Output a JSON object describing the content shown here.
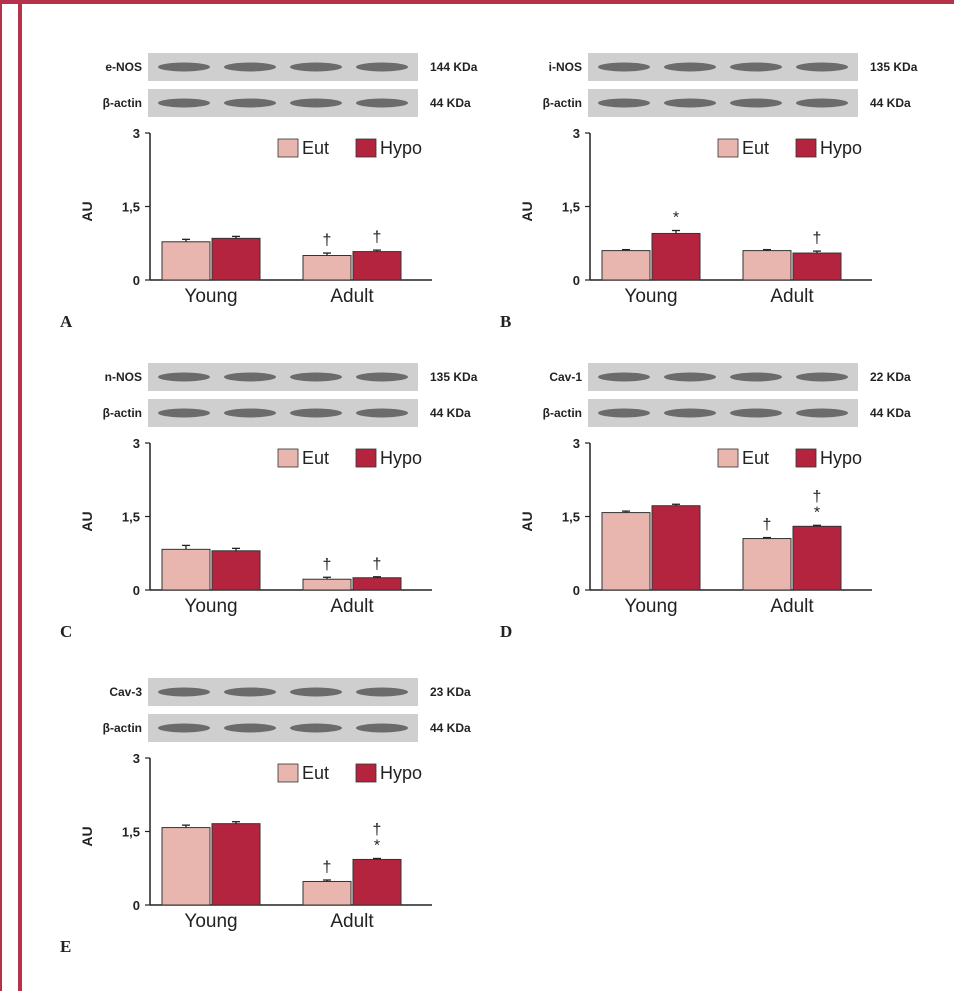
{
  "colors": {
    "eut": "#e8b6ae",
    "hypo": "#b5243f",
    "frame": "#b5324a",
    "blot_bg": "#cfcfcf",
    "band": "#4a4a4a"
  },
  "chart_data": [
    {
      "type": "bar",
      "panel_letter": "A",
      "blots": [
        {
          "label": "e-NOS",
          "kda": "144 KDa"
        },
        {
          "label": "β-actin",
          "kda": "44 KDa"
        }
      ],
      "categories": [
        "Young",
        "Adult"
      ],
      "series": [
        {
          "name": "Eut",
          "values": [
            0.78,
            0.5
          ],
          "errors": [
            0.05,
            0.05
          ]
        },
        {
          "name": "Hypo",
          "values": [
            0.85,
            0.58
          ],
          "errors": [
            0.04,
            0.03
          ]
        }
      ],
      "ylabel": "AU",
      "ylim": [
        0,
        3
      ],
      "yticks": [
        "0",
        "1,5",
        "3"
      ],
      "ytick_values": [
        0,
        1.5,
        3
      ],
      "annotations": [
        {
          "series": "Eut",
          "category": "Adult",
          "text": [
            "†"
          ]
        },
        {
          "series": "Hypo",
          "category": "Adult",
          "text": [
            "†"
          ]
        }
      ]
    },
    {
      "type": "bar",
      "panel_letter": "B",
      "blots": [
        {
          "label": "i-NOS",
          "kda": "135 KDa"
        },
        {
          "label": "β-actin",
          "kda": "44 KDa"
        }
      ],
      "categories": [
        "Young",
        "Adult"
      ],
      "series": [
        {
          "name": "Eut",
          "values": [
            0.6,
            0.6
          ],
          "errors": [
            0.02,
            0.02
          ]
        },
        {
          "name": "Hypo",
          "values": [
            0.95,
            0.55
          ],
          "errors": [
            0.06,
            0.04
          ]
        }
      ],
      "ylabel": "AU",
      "ylim": [
        0,
        3
      ],
      "yticks": [
        "0",
        "1,5",
        "3"
      ],
      "ytick_values": [
        0,
        1.5,
        3
      ],
      "annotations": [
        {
          "series": "Hypo",
          "category": "Young",
          "text": [
            "*"
          ]
        },
        {
          "series": "Hypo",
          "category": "Adult",
          "text": [
            "†"
          ]
        }
      ]
    },
    {
      "type": "bar",
      "panel_letter": "C",
      "blots": [
        {
          "label": "n-NOS",
          "kda": "135 KDa"
        },
        {
          "label": "β-actin",
          "kda": "44 KDa"
        }
      ],
      "categories": [
        "Young",
        "Adult"
      ],
      "series": [
        {
          "name": "Eut",
          "values": [
            0.83,
            0.22
          ],
          "errors": [
            0.08,
            0.04
          ]
        },
        {
          "name": "Hypo",
          "values": [
            0.8,
            0.25
          ],
          "errors": [
            0.05,
            0.02
          ]
        }
      ],
      "ylabel": "AU",
      "ylim": [
        0,
        3
      ],
      "yticks": [
        "0",
        "1,5",
        "3"
      ],
      "ytick_values": [
        0,
        1.5,
        3
      ],
      "annotations": [
        {
          "series": "Eut",
          "category": "Adult",
          "text": [
            "†"
          ]
        },
        {
          "series": "Hypo",
          "category": "Adult",
          "text": [
            "†"
          ]
        }
      ]
    },
    {
      "type": "bar",
      "panel_letter": "D",
      "blots": [
        {
          "label": "Cav-1",
          "kda": "22 KDa"
        },
        {
          "label": "β-actin",
          "kda": "44 KDa"
        }
      ],
      "categories": [
        "Young",
        "Adult"
      ],
      "series": [
        {
          "name": "Eut",
          "values": [
            1.58,
            1.05
          ],
          "errors": [
            0.03,
            0.02
          ]
        },
        {
          "name": "Hypo",
          "values": [
            1.72,
            1.3
          ],
          "errors": [
            0.03,
            0.02
          ]
        }
      ],
      "ylabel": "AU",
      "ylim": [
        0,
        3
      ],
      "yticks": [
        "0",
        "1,5",
        "3"
      ],
      "ytick_values": [
        0,
        1.5,
        3
      ],
      "annotations": [
        {
          "series": "Eut",
          "category": "Adult",
          "text": [
            "†"
          ]
        },
        {
          "series": "Hypo",
          "category": "Adult",
          "text": [
            "†",
            "*"
          ]
        }
      ]
    },
    {
      "type": "bar",
      "panel_letter": "E",
      "blots": [
        {
          "label": "Cav-3",
          "kda": "23 KDa"
        },
        {
          "label": "β-actin",
          "kda": "44 KDa"
        }
      ],
      "categories": [
        "Young",
        "Adult"
      ],
      "series": [
        {
          "name": "Eut",
          "values": [
            1.58,
            0.48
          ],
          "errors": [
            0.05,
            0.03
          ]
        },
        {
          "name": "Hypo",
          "values": [
            1.66,
            0.93
          ],
          "errors": [
            0.04,
            0.02
          ]
        }
      ],
      "ylabel": "AU",
      "ylim": [
        0,
        3
      ],
      "yticks": [
        "0",
        "1,5",
        "3"
      ],
      "ytick_values": [
        0,
        1.5,
        3
      ],
      "annotations": [
        {
          "series": "Eut",
          "category": "Adult",
          "text": [
            "†"
          ]
        },
        {
          "series": "Hypo",
          "category": "Adult",
          "text": [
            "†",
            "*"
          ]
        }
      ]
    }
  ]
}
